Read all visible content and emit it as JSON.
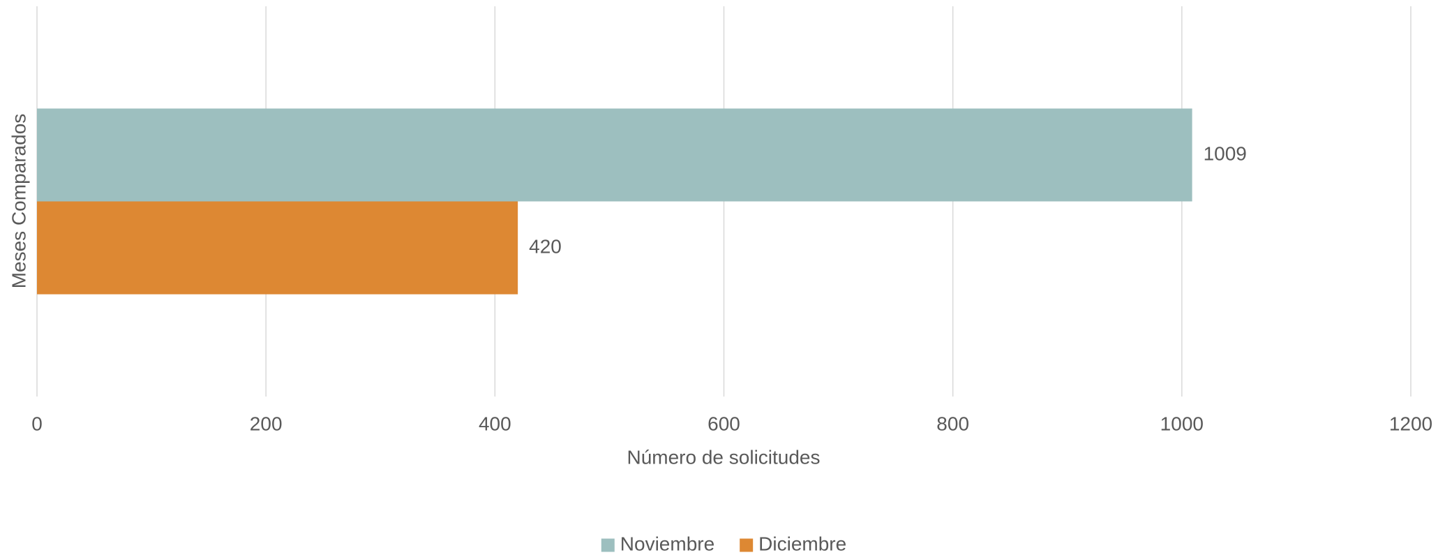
{
  "chart_data": {
    "type": "barh",
    "categories": [
      null
    ],
    "series": [
      {
        "name": "Noviembre",
        "color": "#9dbfbf",
        "values": [
          1009
        ]
      },
      {
        "name": "Diciembre",
        "color": "#dd8833",
        "values": [
          420
        ]
      }
    ],
    "x_label": "Número de solicitudes",
    "y_label": "Meses Comparados",
    "xlim": [
      0,
      1200
    ],
    "xticks": [
      0,
      200,
      400,
      600,
      800,
      1000,
      1200
    ],
    "grid": true,
    "legend": "bottom"
  }
}
